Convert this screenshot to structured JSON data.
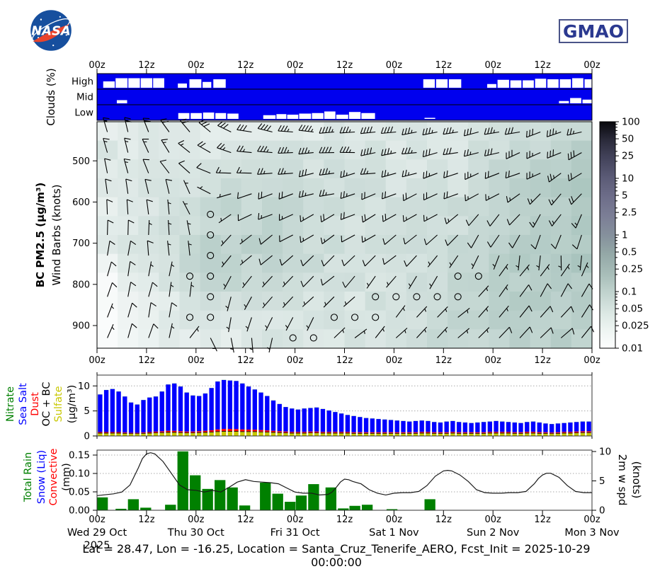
{
  "branding": {
    "nasa_label": "NASA",
    "gmao_label": "GMAO"
  },
  "footer": "Lat = 28.47, Lon = -16.25, Location = Santa_Cruz_Tenerife_AERO, Fcst_Init = 2025-10-29 00:00:00",
  "colors": {
    "cloud_bg": "#0000ee",
    "sea_salt": "#0000ff",
    "sulfate": "#c8c800",
    "dust": "#ff0000",
    "ocbc": "#000000",
    "nitrate": "#008000",
    "rain": "#008000",
    "wind_line": "#1a1a1a",
    "gmao_navy": "#2b3990",
    "nasa_blue": "#164f9e",
    "nasa_red": "#e8442c"
  },
  "time_axis": {
    "hours_total": 120,
    "ticks": [
      {
        "hr": 0,
        "label": "00z"
      },
      {
        "hr": 12,
        "label": "12z"
      },
      {
        "hr": 24,
        "label": "00z"
      },
      {
        "hr": 36,
        "label": "12z"
      },
      {
        "hr": 48,
        "label": "00z"
      },
      {
        "hr": 60,
        "label": "12z"
      },
      {
        "hr": 72,
        "label": "00z"
      },
      {
        "hr": 84,
        "label": "12z"
      },
      {
        "hr": 96,
        "label": "00z"
      },
      {
        "hr": 108,
        "label": "12z"
      },
      {
        "hr": 120,
        "label": "00z"
      }
    ],
    "dates": [
      {
        "hr": 0,
        "label": "Wed 29 Oct",
        "sub": "2025"
      },
      {
        "hr": 24,
        "label": "Thu 30 Oct",
        "sub": ""
      },
      {
        "hr": 48,
        "label": "Fri 31 Oct",
        "sub": ""
      },
      {
        "hr": 72,
        "label": "Sat 1 Nov",
        "sub": ""
      },
      {
        "hr": 96,
        "label": "Sun 2 Nov",
        "sub": ""
      },
      {
        "hr": 120,
        "label": "Mon 3 Nov",
        "sub": ""
      }
    ]
  },
  "chart_data": {
    "clouds": {
      "type": "heatmap",
      "ylabel": "Clouds (%)",
      "rows": [
        "High",
        "Mid",
        "Low"
      ],
      "blocks": {
        "High": [
          [
            1.5,
            4.3,
            0.6
          ],
          [
            4.5,
            7.4,
            0.9
          ],
          [
            7.6,
            10.4,
            0.9
          ],
          [
            10.6,
            13.4,
            0.9
          ],
          [
            13.6,
            16.3,
            0.9
          ],
          [
            19.6,
            21.8,
            0.4
          ],
          [
            22.4,
            25.3,
            0.8
          ],
          [
            25.6,
            27.7,
            0.55
          ],
          [
            28.2,
            31.2,
            0.8
          ],
          [
            79.1,
            81.9,
            0.8
          ],
          [
            82.2,
            85.0,
            0.8
          ],
          [
            85.3,
            88.3,
            0.8
          ],
          [
            94.6,
            96.8,
            0.35
          ],
          [
            97.1,
            99.9,
            0.75
          ],
          [
            100.2,
            102.9,
            0.7
          ],
          [
            103.2,
            105.9,
            0.7
          ],
          [
            106.2,
            108.9,
            0.85
          ],
          [
            109.2,
            111.9,
            0.8
          ],
          [
            112.2,
            114.9,
            0.8
          ],
          [
            115.2,
            117.9,
            0.9
          ],
          [
            118.2,
            119.9,
            0.8
          ]
        ],
        "Mid": [
          [
            4.8,
            7.3,
            0.3
          ],
          [
            112.0,
            114.4,
            0.22
          ],
          [
            114.7,
            117.4,
            0.5
          ],
          [
            117.7,
            120.0,
            0.35
          ]
        ],
        "Low": [
          [
            19.7,
            22.4,
            0.55
          ],
          [
            22.7,
            25.4,
            0.55
          ],
          [
            25.7,
            28.4,
            0.6
          ],
          [
            28.7,
            31.3,
            0.55
          ],
          [
            31.6,
            34.3,
            0.5
          ],
          [
            40.3,
            43.3,
            0.35
          ],
          [
            43.5,
            45.9,
            0.45
          ],
          [
            46.1,
            48.8,
            0.4
          ],
          [
            49.0,
            51.9,
            0.5
          ],
          [
            52.1,
            54.9,
            0.55
          ],
          [
            55.1,
            57.8,
            0.7
          ],
          [
            58.0,
            60.9,
            0.4
          ],
          [
            61.1,
            63.9,
            0.65
          ],
          [
            64.1,
            67.4,
            0.55
          ],
          [
            79.4,
            82.0,
            0.1
          ]
        ]
      }
    },
    "wind_profile": {
      "type": "barbs",
      "ylabel_bold": "BC PM2.5 (μg/m³)",
      "ylabel_norm": "Wind Barbs (knots)",
      "pressure_ticks": [
        500,
        600,
        700,
        800,
        900
      ],
      "pressure_range": [
        405,
        955
      ],
      "control_hours": [
        0,
        15,
        30,
        45,
        60,
        75,
        90,
        105,
        120
      ],
      "control_pressures": [
        410,
        500,
        560,
        630,
        700,
        790,
        870,
        940
      ],
      "wind_dir": [
        [
          350,
          335,
          300,
          275,
          270,
          265,
          260,
          255,
          250
        ],
        [
          355,
          330,
          285,
          270,
          265,
          260,
          255,
          250,
          245
        ],
        [
          0,
          340,
          270,
          260,
          255,
          250,
          245,
          235,
          230
        ],
        [
          5,
          350,
          240,
          245,
          245,
          240,
          230,
          215,
          210
        ],
        [
          10,
          0,
          200,
          235,
          235,
          230,
          210,
          195,
          190
        ],
        [
          15,
          5,
          190,
          225,
          225,
          215,
          60,
          30,
          25
        ],
        [
          20,
          10,
          180,
          215,
          210,
          40,
          45,
          40,
          35
        ],
        [
          25,
          15,
          170,
          200,
          45,
          45,
          50,
          45,
          40
        ]
      ],
      "wind_spd": [
        [
          15,
          20,
          30,
          40,
          45,
          40,
          35,
          30,
          30
        ],
        [
          15,
          15,
          20,
          30,
          35,
          30,
          25,
          22,
          25
        ],
        [
          12,
          12,
          3,
          20,
          25,
          22,
          18,
          18,
          20
        ],
        [
          10,
          8,
          2,
          15,
          18,
          15,
          12,
          12,
          15
        ],
        [
          10,
          8,
          2,
          10,
          12,
          10,
          8,
          10,
          12
        ],
        [
          8,
          8,
          3,
          8,
          8,
          6,
          2,
          8,
          10
        ],
        [
          8,
          10,
          5,
          5,
          2,
          5,
          2,
          8,
          10
        ],
        [
          6,
          10,
          6,
          2,
          5,
          7,
          6,
          10,
          12
        ]
      ],
      "bc_shading": [
        [
          0.02,
          0.02,
          0.015,
          0.02,
          0.02,
          0.02,
          0.02,
          0.03,
          0.05
        ],
        [
          0.025,
          0.02,
          0.02,
          0.03,
          0.03,
          0.025,
          0.03,
          0.05,
          0.08
        ],
        [
          0.02,
          0.025,
          0.04,
          0.04,
          0.03,
          0.03,
          0.03,
          0.06,
          0.09
        ],
        [
          0.015,
          0.03,
          0.05,
          0.05,
          0.03,
          0.03,
          0.04,
          0.07,
          0.1
        ],
        [
          0.015,
          0.03,
          0.06,
          0.05,
          0.03,
          0.03,
          0.04,
          0.08,
          0.1
        ],
        [
          0.01,
          0.02,
          0.05,
          0.04,
          0.03,
          0.03,
          0.05,
          0.08,
          0.09
        ],
        [
          0.01,
          0.015,
          0.03,
          0.03,
          0.025,
          0.03,
          0.05,
          0.07,
          0.08
        ],
        [
          0.01,
          0.015,
          0.02,
          0.025,
          0.025,
          0.03,
          0.05,
          0.06,
          0.07
        ]
      ],
      "colorbar": {
        "tick_labels": [
          "100",
          "50",
          "25",
          "10",
          "5",
          "2.5",
          "1",
          "0.5",
          "0.25",
          "0.1",
          "0.05",
          "0.025",
          "0.01"
        ],
        "tick_values": [
          100,
          50,
          25,
          10,
          5,
          2.5,
          1,
          0.5,
          0.25,
          0.1,
          0.05,
          0.025,
          0.01
        ],
        "range": [
          0.01,
          100
        ]
      }
    },
    "aerosol": {
      "type": "bar",
      "stacked": true,
      "yticks": [
        0,
        5,
        10
      ],
      "ylim": [
        0,
        12.2
      ],
      "label_words": [
        {
          "text": "Nitrate",
          "color": "#008000"
        },
        {
          "text": "Sea Salt",
          "color": "#0000ff"
        },
        {
          "text": "Dust",
          "color": "#ff0000"
        },
        {
          "text": "OC + BC",
          "color": "#000000"
        },
        {
          "text": "Sulfate",
          "color": "#c8c800"
        },
        {
          "text": "(μg/m³)",
          "color": "#000000"
        }
      ],
      "n_bars": 80,
      "total": [
        8.3,
        9.2,
        9.4,
        8.9,
        7.9,
        6.7,
        6.3,
        7.2,
        7.7,
        7.9,
        8.9,
        10.3,
        10.5,
        9.9,
        8.7,
        8.1,
        8.0,
        8.5,
        9.6,
        10.9,
        11.2,
        11.1,
        11.0,
        10.5,
        9.9,
        9.3,
        8.7,
        8.0,
        7.1,
        6.4,
        5.8,
        5.5,
        5.3,
        5.5,
        5.6,
        5.7,
        5.4,
        5.1,
        4.8,
        4.5,
        4.2,
        4.0,
        3.8,
        3.6,
        3.5,
        3.4,
        3.3,
        3.2,
        3.1,
        3.0,
        2.9,
        3.0,
        3.1,
        3.0,
        2.8,
        2.7,
        2.9,
        3.0,
        2.8,
        2.7,
        2.6,
        2.7,
        2.8,
        2.9,
        3.0,
        2.9,
        2.8,
        2.7,
        2.6,
        2.8,
        2.9,
        2.7,
        2.5,
        2.4,
        2.5,
        2.6,
        2.7,
        2.8,
        2.9,
        2.9
      ],
      "sulfate": [
        0.5,
        0.5,
        0.5,
        0.5,
        0.45,
        0.4,
        0.4,
        0.45,
        0.5,
        0.55,
        0.6,
        0.65,
        0.65,
        0.6,
        0.55,
        0.55,
        0.6,
        0.65,
        0.7,
        0.8,
        0.85,
        0.85,
        0.85,
        0.8,
        0.8,
        0.8,
        0.75,
        0.7,
        0.65,
        0.6,
        0.55,
        0.5,
        0.5,
        0.5,
        0.55,
        0.55,
        0.5,
        0.5,
        0.5,
        0.5,
        0.5,
        0.45,
        0.45,
        0.45,
        0.45,
        0.45,
        0.45,
        0.45,
        0.45,
        0.45,
        0.45,
        0.45,
        0.5,
        0.5,
        0.45,
        0.45,
        0.45,
        0.5,
        0.45,
        0.45,
        0.45,
        0.45,
        0.45,
        0.5,
        0.5,
        0.5,
        0.5,
        0.45,
        0.45,
        0.5,
        0.5,
        0.45,
        0.45,
        0.4,
        0.45,
        0.5,
        0.5,
        0.55,
        0.6,
        0.6
      ],
      "dust": [
        0.15,
        0.15,
        0.15,
        0.15,
        0.12,
        0.1,
        0.1,
        0.12,
        0.15,
        0.18,
        0.2,
        0.25,
        0.25,
        0.22,
        0.2,
        0.2,
        0.22,
        0.25,
        0.3,
        0.38,
        0.42,
        0.42,
        0.4,
        0.38,
        0.35,
        0.32,
        0.3,
        0.28,
        0.25,
        0.22,
        0.2,
        0.18,
        0.18,
        0.18,
        0.2,
        0.2,
        0.18,
        0.18,
        0.18,
        0.18,
        0.18,
        0.16,
        0.16,
        0.16,
        0.16,
        0.16,
        0.16,
        0.16,
        0.16,
        0.16,
        0.16,
        0.16,
        0.18,
        0.18,
        0.16,
        0.16,
        0.16,
        0.18,
        0.16,
        0.16,
        0.16,
        0.16,
        0.16,
        0.18,
        0.18,
        0.18,
        0.18,
        0.16,
        0.16,
        0.2,
        0.2,
        0.18,
        0.16,
        0.15,
        0.16,
        0.18,
        0.18,
        0.2,
        0.2,
        0.2
      ],
      "ocbc_const": 0.13,
      "nitrate_const": 0.02
    },
    "precip_wind": {
      "type": "bar+line",
      "label_words": [
        {
          "text": "Total Rain",
          "color": "#008000"
        },
        {
          "text": "Snow (Liq)",
          "color": "#0000ff"
        },
        {
          "text": "Convective",
          "color": "#ff0000"
        },
        {
          "text": "(mm)",
          "color": "#000000"
        }
      ],
      "right_label_line1": "2m w spd",
      "right_label_line2": "(knots)",
      "yticks_left": [
        "0.00",
        "0.05",
        "0.10",
        "0.15"
      ],
      "yticks_right": [
        "0",
        "5",
        "10"
      ],
      "ylim_left": [
        0,
        0.163
      ],
      "ylim_right": [
        0,
        10.2
      ],
      "rain_bar_width_hr": 2.8,
      "rain_bars": [
        [
          0,
          0.035
        ],
        [
          4.5,
          0.004
        ],
        [
          7.5,
          0.03
        ],
        [
          10.5,
          0.007
        ],
        [
          16.5,
          0.015
        ],
        [
          19.5,
          0.16
        ],
        [
          22.5,
          0.095
        ],
        [
          25.5,
          0.058
        ],
        [
          28.5,
          0.082
        ],
        [
          31.5,
          0.062
        ],
        [
          34.5,
          0.013
        ],
        [
          39.5,
          0.075
        ],
        [
          42.5,
          0.045
        ],
        [
          45.5,
          0.023
        ],
        [
          48.2,
          0.04
        ],
        [
          51.2,
          0.071
        ],
        [
          55.4,
          0.062
        ],
        [
          58.4,
          0.005
        ],
        [
          61.2,
          0.012
        ],
        [
          64.2,
          0.015
        ],
        [
          70.2,
          0.003
        ],
        [
          79.4,
          0.03
        ]
      ],
      "wind_line": [
        [
          0,
          2.5
        ],
        [
          4,
          2.8
        ],
        [
          6,
          3.1
        ],
        [
          8,
          4.3
        ],
        [
          10,
          7.2
        ],
        [
          11,
          8.8
        ],
        [
          12,
          9.6
        ],
        [
          13,
          9.8
        ],
        [
          14,
          9.6
        ],
        [
          16,
          8.3
        ],
        [
          18,
          6.3
        ],
        [
          20,
          4.3
        ],
        [
          22,
          3.5
        ],
        [
          24,
          3.4
        ],
        [
          26,
          3.1
        ],
        [
          28,
          3.4
        ],
        [
          30,
          3.1
        ],
        [
          32,
          3.9
        ],
        [
          34,
          4.8
        ],
        [
          36,
          5.2
        ],
        [
          38,
          4.9
        ],
        [
          40,
          4.8
        ],
        [
          42,
          4.7
        ],
        [
          44,
          4.5
        ],
        [
          46,
          3.8
        ],
        [
          48,
          3.1
        ],
        [
          50,
          2.9
        ],
        [
          52,
          2.9
        ],
        [
          54,
          2.6
        ],
        [
          56,
          2.7
        ],
        [
          57,
          3.1
        ],
        [
          58,
          3.9
        ],
        [
          59,
          4.8
        ],
        [
          60,
          5.3
        ],
        [
          61,
          5.2
        ],
        [
          62,
          4.9
        ],
        [
          64,
          4.5
        ],
        [
          66,
          3.5
        ],
        [
          68,
          2.9
        ],
        [
          70,
          2.6
        ],
        [
          72,
          2.9
        ],
        [
          74,
          3.0
        ],
        [
          76,
          3.0
        ],
        [
          78,
          3.2
        ],
        [
          80,
          4.2
        ],
        [
          82,
          5.8
        ],
        [
          84,
          6.7
        ],
        [
          85,
          6.8
        ],
        [
          86,
          6.7
        ],
        [
          88,
          6.0
        ],
        [
          90,
          4.9
        ],
        [
          92,
          3.5
        ],
        [
          94,
          3.0
        ],
        [
          96,
          2.9
        ],
        [
          98,
          2.9
        ],
        [
          100,
          3.0
        ],
        [
          102,
          3.0
        ],
        [
          104,
          3.2
        ],
        [
          106,
          4.5
        ],
        [
          107,
          5.4
        ],
        [
          108,
          6.0
        ],
        [
          109,
          6.3
        ],
        [
          110,
          6.3
        ],
        [
          112,
          5.6
        ],
        [
          114,
          4.2
        ],
        [
          116,
          3.2
        ],
        [
          118,
          3.0
        ],
        [
          120,
          3.0
        ]
      ]
    }
  }
}
